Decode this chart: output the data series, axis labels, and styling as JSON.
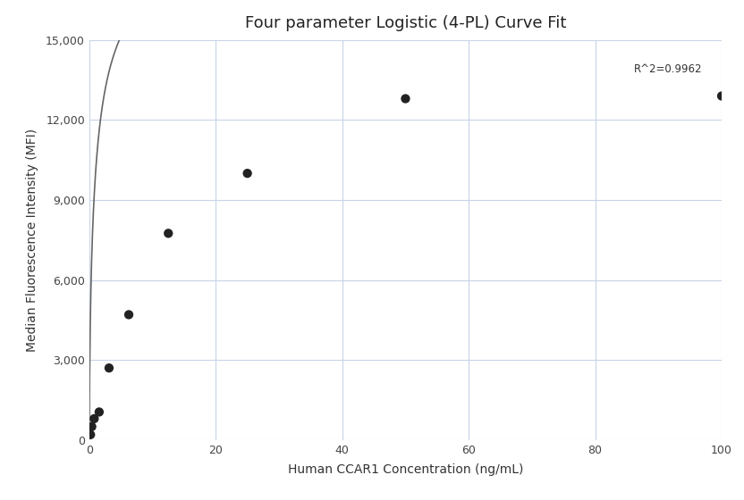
{
  "title": "Four parameter Logistic (4-PL) Curve Fit",
  "xlabel": "Human CCAR1 Concentration (ng/mL)",
  "ylabel": "Median Fluorescence Intensity (MFI)",
  "scatter_x": [
    0.195,
    0.391,
    0.781,
    1.563,
    3.125,
    6.25,
    12.5,
    25.0,
    50.0,
    100.0
  ],
  "scatter_y": [
    200,
    500,
    800,
    1050,
    2700,
    4700,
    7750,
    10000,
    12800,
    12900
  ],
  "xlim": [
    0,
    100
  ],
  "ylim": [
    0,
    15000
  ],
  "xticks": [
    0,
    20,
    40,
    60,
    80,
    100
  ],
  "yticks": [
    0,
    3000,
    6000,
    9000,
    12000,
    15000
  ],
  "r_squared": "R^2=0.9962",
  "r2_x": 97,
  "r2_y": 13700,
  "dot_color": "#222222",
  "dot_size": 55,
  "line_color": "#666666",
  "grid_color": "#c8d4e8",
  "background_color": "#ffffff",
  "title_fontsize": 13,
  "axis_label_fontsize": 10,
  "tick_fontsize": 9
}
